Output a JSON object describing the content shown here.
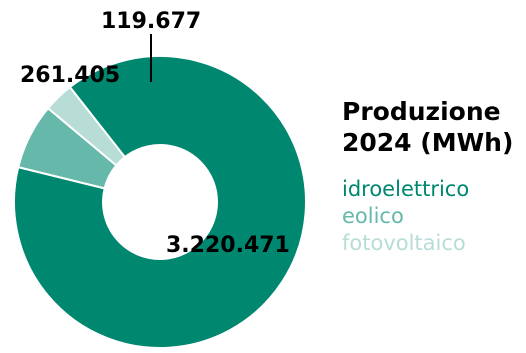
{
  "chart_data": {
    "type": "pie",
    "donut": true,
    "title_lines": [
      "Produzione",
      "2024 (MWh)"
    ],
    "categories": [
      "idroelettrico",
      "eolico",
      "fotovoltaico"
    ],
    "values": [
      3220471,
      261405,
      119677
    ],
    "value_labels": [
      "3.220.471",
      "261.405",
      "119.677"
    ],
    "colors": [
      "#00876f",
      "#66b9aa",
      "#b7ddd6"
    ],
    "legend_position": "right"
  }
}
